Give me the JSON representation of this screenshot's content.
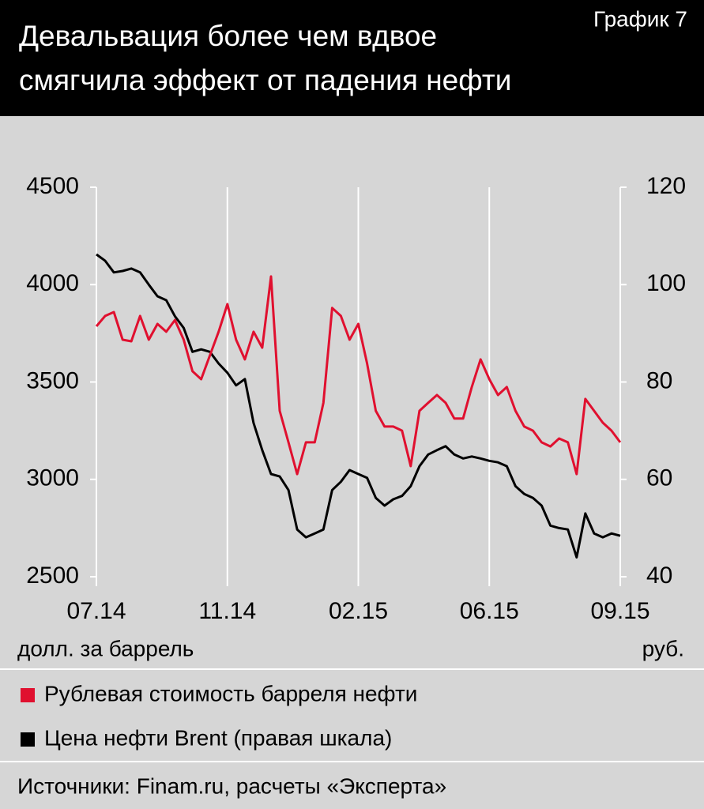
{
  "chart_data": {
    "type": "line",
    "label": "График 7",
    "title": [
      "Девальвация более чем вдвое",
      "смягчила эффект от падения нефти"
    ],
    "y_label": "долл. за баррель",
    "y2_label": "руб.",
    "source": "Источники: Finam.ru, расчеты «Эксперта»",
    "categories": [
      "07.14",
      null,
      null,
      null,
      null,
      null,
      null,
      null,
      null,
      null,
      null,
      null,
      null,
      null,
      null,
      "11.14",
      null,
      null,
      null,
      null,
      null,
      null,
      null,
      null,
      null,
      null,
      null,
      null,
      null,
      null,
      "02.15",
      null,
      null,
      null,
      null,
      null,
      null,
      null,
      null,
      null,
      null,
      null,
      null,
      null,
      null,
      "06.15",
      null,
      null,
      null,
      null,
      null,
      null,
      null,
      null,
      null,
      null,
      null,
      null,
      null,
      null,
      "09.15"
    ],
    "ylim": [
      2500,
      4500
    ],
    "yticks": [
      2500,
      3000,
      3500,
      4000,
      4500
    ],
    "y2lim": [
      40,
      120
    ],
    "y2ticks": [
      40,
      60,
      80,
      100,
      120
    ],
    "grid": true,
    "series": [
      {
        "name": "Рублевая стоимость барреля нефти",
        "color": "#e0102f",
        "values": [
          3786,
          3839,
          3859,
          3717,
          3709,
          3839,
          3717,
          3798,
          3758,
          3818,
          3717,
          3555,
          3514,
          3636,
          3758,
          3900,
          3717,
          3616,
          3758,
          3676,
          4042,
          3352,
          3190,
          3027,
          3190,
          3190,
          3393,
          3880,
          3839,
          3717,
          3798,
          3595,
          3352,
          3271,
          3271,
          3250,
          3068,
          3352,
          3393,
          3433,
          3393,
          3312,
          3312,
          3474,
          3616,
          3514,
          3433,
          3474,
          3352,
          3271,
          3250,
          3190,
          3169,
          3210,
          3190,
          3027,
          3413,
          3352,
          3291,
          3250,
          3190
        ]
      },
      {
        "name": "Цена нефти Brent (правая шкала)",
        "color": "#000000",
        "axis": "y2",
        "values": [
          106.2,
          104.9,
          102.5,
          102.8,
          103.3,
          102.5,
          100.0,
          97.6,
          96.8,
          93.5,
          91.1,
          86.2,
          86.7,
          86.2,
          83.8,
          81.9,
          79.3,
          80.6,
          71.6,
          66.0,
          61.1,
          60.6,
          57.8,
          49.7,
          48.1,
          48.9,
          49.7,
          57.8,
          59.5,
          61.9,
          61.1,
          60.3,
          56.2,
          54.6,
          55.9,
          56.6,
          58.6,
          62.7,
          65.1,
          66.0,
          66.8,
          65.1,
          64.3,
          64.7,
          64.3,
          63.8,
          63.5,
          62.7,
          58.6,
          57.0,
          56.2,
          54.6,
          50.5,
          50.0,
          49.7,
          44.0,
          53.0,
          48.9,
          48.1,
          48.9,
          48.4
        ]
      }
    ]
  }
}
